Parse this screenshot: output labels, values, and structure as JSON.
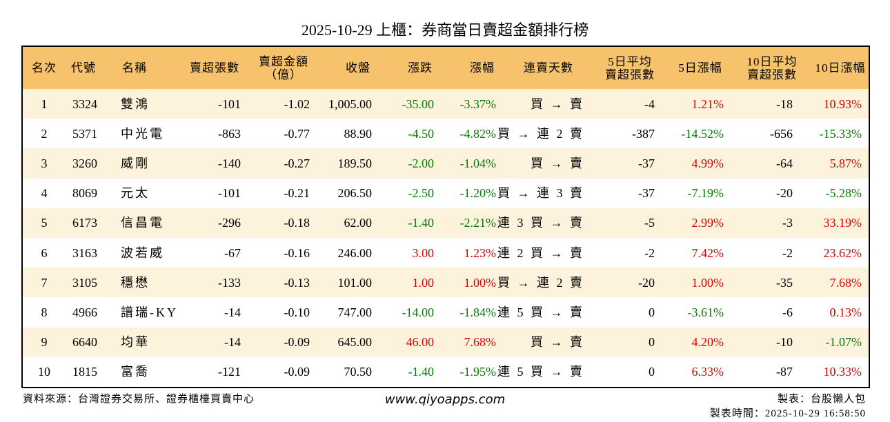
{
  "header": {
    "title": "2025-10-29 上櫃：券商當日賣超金額排行榜"
  },
  "table": {
    "columns": [
      [
        "名次"
      ],
      [
        "代號"
      ],
      [
        "名稱"
      ],
      [
        "賣超張數"
      ],
      [
        "賣超金額",
        "（億）"
      ],
      [
        "收盤"
      ],
      [
        "漲跌"
      ],
      [
        "漲幅"
      ],
      [
        "連賣天數"
      ],
      [
        "5日平均",
        "賣超張數"
      ],
      [
        "5日漲幅"
      ],
      [
        "10日平均",
        "賣超張數"
      ],
      [
        "10日漲幅"
      ]
    ],
    "rows": [
      [
        "1",
        "3324",
        "雙鴻",
        "-101",
        "-1.02",
        "1,005.00",
        "-35.00",
        "-3.37%",
        "買 → 賣",
        "-4",
        "1.21%",
        "-18",
        "10.93%"
      ],
      [
        "2",
        "5371",
        "中光電",
        "-863",
        "-0.77",
        "88.90",
        "-4.50",
        "-4.82%",
        "買 → 連 2 賣",
        "-387",
        "-14.52%",
        "-656",
        "-15.33%"
      ],
      [
        "3",
        "3260",
        "威剛",
        "-140",
        "-0.27",
        "189.50",
        "-2.00",
        "-1.04%",
        "買 → 賣",
        "-37",
        "4.99%",
        "-64",
        "5.87%"
      ],
      [
        "4",
        "8069",
        "元太",
        "-101",
        "-0.21",
        "206.50",
        "-2.50",
        "-1.20%",
        "買 → 連 3 賣",
        "-37",
        "-7.19%",
        "-20",
        "-5.28%"
      ],
      [
        "5",
        "6173",
        "信昌電",
        "-296",
        "-0.18",
        "62.00",
        "-1.40",
        "-2.21%",
        "連 3 買 → 賣",
        "-5",
        "2.99%",
        "-3",
        "33.19%"
      ],
      [
        "6",
        "3163",
        "波若威",
        "-67",
        "-0.16",
        "246.00",
        "3.00",
        "1.23%",
        "連 2 買 → 賣",
        "-2",
        "7.42%",
        "-2",
        "23.62%"
      ],
      [
        "7",
        "3105",
        "穩懋",
        "-133",
        "-0.13",
        "101.00",
        "1.00",
        "1.00%",
        "買 → 連 2 賣",
        "-20",
        "1.00%",
        "-35",
        "7.68%"
      ],
      [
        "8",
        "4966",
        "譜瑞-KY",
        "-14",
        "-0.10",
        "747.00",
        "-14.00",
        "-1.84%",
        "連 5 買 → 賣",
        "0",
        "-3.61%",
        "-6",
        "0.13%"
      ],
      [
        "9",
        "6640",
        "均華",
        "-14",
        "-0.09",
        "645.00",
        "46.00",
        "7.68%",
        "買 → 賣",
        "0",
        "4.20%",
        "-10",
        "-1.07%"
      ],
      [
        "10",
        "1815",
        "富喬",
        "-121",
        "-0.09",
        "70.50",
        "-1.40",
        "-1.95%",
        "連 5 買 → 賣",
        "0",
        "6.33%",
        "-87",
        "10.33%"
      ]
    ]
  },
  "footer": {
    "source": "資料來源：台灣證券交易所、證券櫃檯買賣中心",
    "site": "www.qiyoapps.com",
    "author": "製表：台股懶人包",
    "time": "製表時間：2025-10-29 16:58:50"
  }
}
